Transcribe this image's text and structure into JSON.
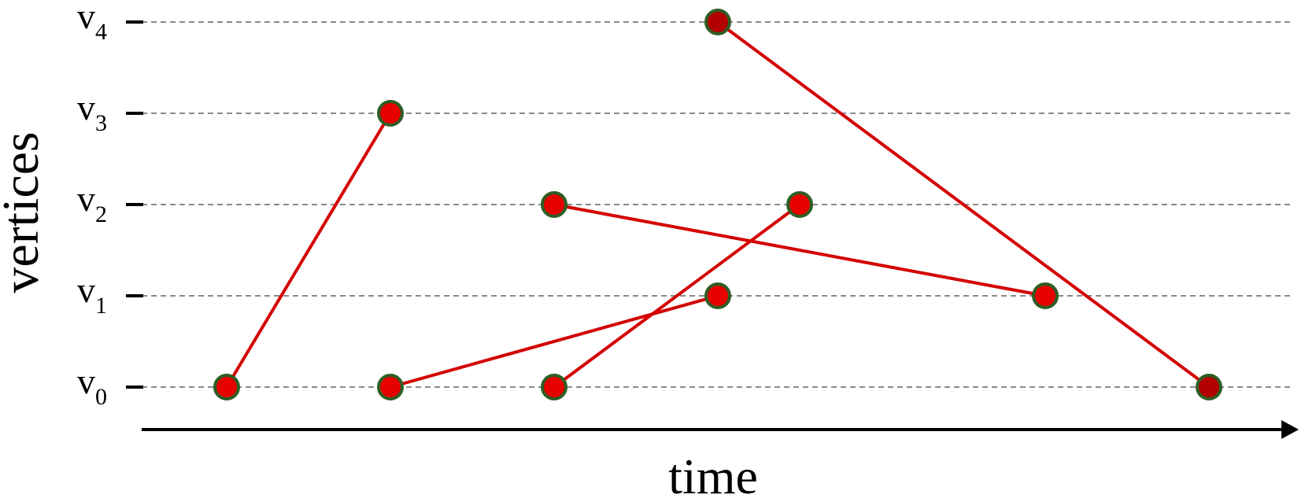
{
  "diagram": {
    "x_axis_label": "time",
    "y_axis_label": "vertices",
    "vertices": [
      {
        "base": "v",
        "sub": "0"
      },
      {
        "base": "v",
        "sub": "1"
      },
      {
        "base": "v",
        "sub": "2"
      },
      {
        "base": "v",
        "sub": "3"
      },
      {
        "base": "v",
        "sub": "4"
      }
    ],
    "nodes": [
      {
        "id": "a",
        "t": 1,
        "v": 0,
        "color": "#e60000"
      },
      {
        "id": "b",
        "t": 2,
        "v": 3,
        "color": "#e60000"
      },
      {
        "id": "c",
        "t": 2,
        "v": 0,
        "color": "#e60000"
      },
      {
        "id": "d",
        "t": 3,
        "v": 2,
        "color": "#e60000"
      },
      {
        "id": "e",
        "t": 3,
        "v": 0,
        "color": "#e60000"
      },
      {
        "id": "f",
        "t": 4,
        "v": 4,
        "color": "#b30000"
      },
      {
        "id": "g",
        "t": 4,
        "v": 1,
        "color": "#e60000"
      },
      {
        "id": "h",
        "t": 4.5,
        "v": 2,
        "color": "#e60000"
      },
      {
        "id": "i",
        "t": 6,
        "v": 1,
        "color": "#e60000"
      },
      {
        "id": "j",
        "t": 7,
        "v": 0,
        "color": "#b30000"
      }
    ],
    "edges": [
      {
        "from": "a",
        "to": "b"
      },
      {
        "from": "c",
        "to": "g"
      },
      {
        "from": "e",
        "to": "h"
      },
      {
        "from": "d",
        "to": "i"
      },
      {
        "from": "f",
        "to": "j"
      }
    ],
    "colors": {
      "edge": "#d40000",
      "node_outline": "#2e5e25",
      "grid": "#8a8a8a",
      "axis": "#000000"
    }
  }
}
